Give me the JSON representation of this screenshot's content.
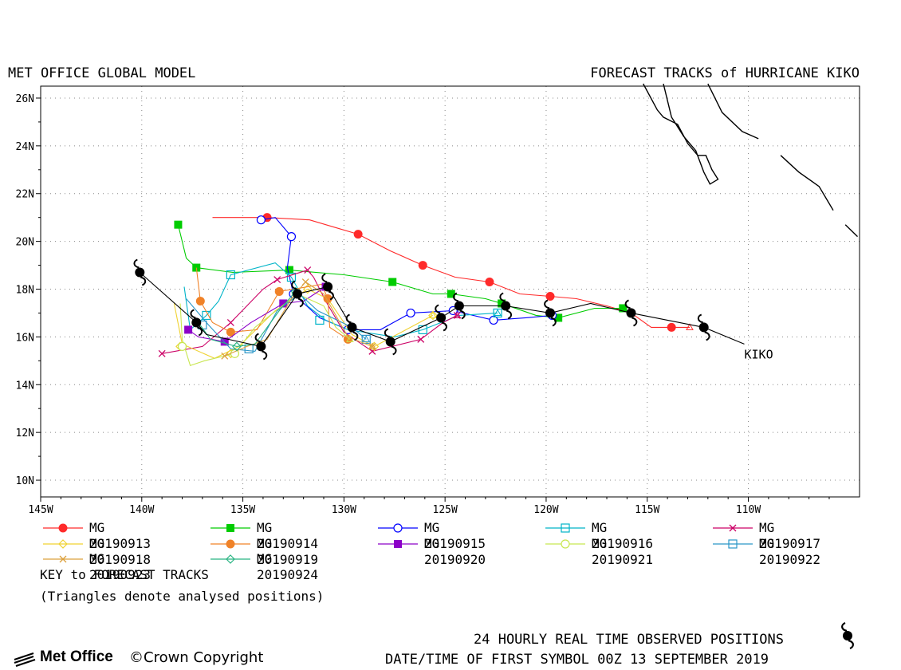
{
  "header": {
    "left_title": "MET OFFICE GLOBAL MODEL",
    "right_title": "FORECAST TRACKS of HURRICANE KIKO"
  },
  "map": {
    "lon_range": [
      -145,
      -104.5
    ],
    "lat_range": [
      9.3,
      26.5
    ],
    "lon_ticks": [
      {
        "lon": -145,
        "label": "145W"
      },
      {
        "lon": -140,
        "label": "140W"
      },
      {
        "lon": -135,
        "label": "135W"
      },
      {
        "lon": -130,
        "label": "130W"
      },
      {
        "lon": -125,
        "label": "125W"
      },
      {
        "lon": -120,
        "label": "120W"
      },
      {
        "lon": -115,
        "label": "115W"
      },
      {
        "lon": -110,
        "label": "110W"
      }
    ],
    "lat_ticks": [
      {
        "lat": 10,
        "label": "10N"
      },
      {
        "lat": 12,
        "label": "12N"
      },
      {
        "lat": 14,
        "label": "14N"
      },
      {
        "lat": 16,
        "label": "16N"
      },
      {
        "lat": 18,
        "label": "18N"
      },
      {
        "lat": 20,
        "label": "20N"
      },
      {
        "lat": 22,
        "label": "22N"
      },
      {
        "lat": 24,
        "label": "24N"
      },
      {
        "lat": 26,
        "label": "26N"
      }
    ],
    "grid": true,
    "storm_label": "KIKO",
    "storm_label_pos": [
      -110.2,
      15.1
    ],
    "observed_track": [
      [
        -110.2,
        15.7
      ],
      [
        -112.2,
        16.4
      ],
      [
        -115.8,
        17.0
      ],
      [
        -117.8,
        17.4
      ],
      [
        -119.8,
        17.0
      ],
      [
        -122.0,
        17.3
      ],
      [
        -124.3,
        17.3
      ],
      [
        -125.2,
        16.8
      ],
      [
        -127.7,
        15.8
      ],
      [
        -129.6,
        16.4
      ],
      [
        -130.8,
        18.1
      ],
      [
        -132.3,
        17.8
      ],
      [
        -134.1,
        15.6
      ],
      [
        -136.8,
        16.1
      ],
      [
        -137.3,
        16.6
      ],
      [
        -140.1,
        18.7
      ]
    ],
    "observed_points": [
      [
        -112.2,
        16.4
      ],
      [
        -115.8,
        17.0
      ],
      [
        -119.8,
        17.0
      ],
      [
        -122.0,
        17.3
      ],
      [
        -124.3,
        17.3
      ],
      [
        -125.2,
        16.8
      ],
      [
        -127.7,
        15.8
      ],
      [
        -129.6,
        16.4
      ],
      [
        -130.8,
        18.1
      ],
      [
        -132.3,
        17.8
      ],
      [
        -134.1,
        15.6
      ],
      [
        -137.3,
        16.6
      ],
      [
        -140.1,
        18.7
      ]
    ],
    "coastlines": [
      [
        [
          -115.2,
          26.6
        ],
        [
          -114.5,
          25.5
        ],
        [
          -114.2,
          25.2
        ],
        [
          -113.5,
          24.9
        ],
        [
          -113.0,
          24.1
        ],
        [
          -112.5,
          23.6
        ],
        [
          -112.1,
          23.6
        ],
        [
          -111.8,
          23.0
        ],
        [
          -111.5,
          22.6
        ],
        [
          -111.9,
          22.4
        ],
        [
          -112.2,
          22.9
        ],
        [
          -112.6,
          23.8
        ],
        [
          -113.2,
          24.4
        ],
        [
          -113.8,
          25.2
        ],
        [
          -114.2,
          26.6
        ]
      ],
      [
        [
          -112.0,
          26.6
        ],
        [
          -111.3,
          25.4
        ],
        [
          -110.3,
          24.6
        ],
        [
          -109.5,
          24.3
        ]
      ],
      [
        [
          -108.4,
          23.6
        ],
        [
          -107.5,
          22.9
        ],
        [
          -106.5,
          22.3
        ],
        [
          -105.8,
          21.3
        ]
      ],
      [
        [
          -105.2,
          20.7
        ],
        [
          -104.6,
          20.2
        ]
      ]
    ]
  },
  "forecast_tracks": [
    {
      "name": "MG 20190913",
      "color": "#ff2a2a",
      "marker": "circle-filled",
      "points": [
        [
          -112.9,
          16.4
        ],
        [
          -113.8,
          16.4
        ],
        [
          -114.8,
          16.4
        ],
        [
          -115.8,
          17.0
        ],
        [
          -117.0,
          17.3
        ],
        [
          -118.5,
          17.6
        ],
        [
          -119.8,
          17.7
        ],
        [
          -121.3,
          17.8
        ],
        [
          -122.8,
          18.3
        ],
        [
          -124.5,
          18.5
        ],
        [
          -126.1,
          19.0
        ],
        [
          -127.7,
          19.6
        ],
        [
          -129.3,
          20.3
        ],
        [
          -130.5,
          20.6
        ],
        [
          -131.7,
          20.9
        ],
        [
          -133.8,
          21.0
        ],
        [
          -136.5,
          21.0
        ]
      ],
      "markers": [
        [
          -113.8,
          16.4
        ],
        [
          -115.8,
          17.0
        ],
        [
          -119.8,
          17.7
        ],
        [
          -122.8,
          18.3
        ],
        [
          -126.1,
          19.0
        ],
        [
          -129.3,
          20.3
        ],
        [
          -133.8,
          21.0
        ]
      ]
    },
    {
      "name": "MG 20190914",
      "color": "#00cc00",
      "marker": "square-filled",
      "points": [
        [
          -116.2,
          17.2
        ],
        [
          -117.6,
          17.2
        ],
        [
          -119.4,
          16.8
        ],
        [
          -120.5,
          16.9
        ],
        [
          -122.2,
          17.4
        ],
        [
          -123.0,
          17.6
        ],
        [
          -124.7,
          17.8
        ],
        [
          -125.6,
          17.8
        ],
        [
          -127.6,
          18.3
        ],
        [
          -130.0,
          18.6
        ],
        [
          -132.7,
          18.8
        ],
        [
          -135.5,
          18.7
        ],
        [
          -137.3,
          18.9
        ],
        [
          -137.8,
          19.3
        ],
        [
          -138.0,
          20.0
        ],
        [
          -138.2,
          20.7
        ]
      ],
      "markers": [
        [
          -116.2,
          17.2
        ],
        [
          -119.4,
          16.8
        ],
        [
          -122.2,
          17.4
        ],
        [
          -124.7,
          17.8
        ],
        [
          -127.6,
          18.3
        ],
        [
          -132.7,
          18.8
        ],
        [
          -137.3,
          18.9
        ],
        [
          -138.2,
          20.7
        ]
      ]
    },
    {
      "name": "MG 20190915",
      "color": "#0000ff",
      "marker": "circle-open",
      "points": [
        [
          -119.7,
          16.9
        ],
        [
          -121.0,
          16.8
        ],
        [
          -122.6,
          16.7
        ],
        [
          -124.6,
          17.1
        ],
        [
          -126.7,
          17.0
        ],
        [
          -128.2,
          16.3
        ],
        [
          -129.8,
          16.3
        ],
        [
          -131.2,
          16.8
        ],
        [
          -132.5,
          17.8
        ],
        [
          -132.8,
          18.9
        ],
        [
          -132.6,
          20.2
        ],
        [
          -133.4,
          21.0
        ],
        [
          -134.1,
          20.9
        ]
      ],
      "markers": [
        [
          -119.7,
          16.9
        ],
        [
          -122.6,
          16.7
        ],
        [
          -124.6,
          17.1
        ],
        [
          -126.7,
          17.0
        ],
        [
          -129.8,
          16.3
        ],
        [
          -132.5,
          17.8
        ],
        [
          -132.6,
          20.2
        ],
        [
          -134.1,
          20.9
        ]
      ]
    },
    {
      "name": "MG 20190916",
      "color": "#00b4c8",
      "marker": "square-open",
      "points": [
        [
          -122.4,
          17.0
        ],
        [
          -124.3,
          16.9
        ],
        [
          -126.1,
          16.3
        ],
        [
          -127.5,
          16.0
        ],
        [
          -129.8,
          16.3
        ],
        [
          -130.9,
          16.7
        ],
        [
          -131.8,
          17.3
        ],
        [
          -132.6,
          18.5
        ],
        [
          -133.4,
          19.1
        ],
        [
          -135.6,
          18.6
        ],
        [
          -136.2,
          17.5
        ],
        [
          -136.8,
          16.9
        ],
        [
          -137.2,
          16.6
        ],
        [
          -137.6,
          16.3
        ],
        [
          -137.9,
          18.1
        ]
      ],
      "markers": [
        [
          -122.4,
          17.0
        ],
        [
          -126.1,
          16.3
        ],
        [
          -131.2,
          16.7
        ],
        [
          -132.6,
          18.5
        ],
        [
          -135.6,
          18.6
        ],
        [
          -136.8,
          16.9
        ]
      ]
    },
    {
      "name": "MG 20190917",
      "color": "#cc0066",
      "marker": "x",
      "points": [
        [
          -124.4,
          16.9
        ],
        [
          -125.1,
          16.6
        ],
        [
          -126.2,
          15.9
        ],
        [
          -128.6,
          15.4
        ],
        [
          -130.0,
          16.2
        ],
        [
          -130.9,
          17.5
        ],
        [
          -131.5,
          18.5
        ],
        [
          -131.8,
          18.8
        ],
        [
          -133.3,
          18.4
        ],
        [
          -134.0,
          18.0
        ],
        [
          -135.6,
          16.6
        ],
        [
          -137.0,
          15.6
        ],
        [
          -139.0,
          15.3
        ]
      ],
      "markers": [
        [
          -124.4,
          16.9
        ],
        [
          -126.2,
          15.9
        ],
        [
          -128.6,
          15.4
        ],
        [
          -131.8,
          18.8
        ],
        [
          -133.3,
          18.4
        ],
        [
          -135.6,
          16.6
        ],
        [
          -139.0,
          15.3
        ]
      ]
    },
    {
      "name": "MG 20190918",
      "color": "#f0d232",
      "marker": "diamond-open",
      "points": [
        [
          -125.6,
          16.9
        ],
        [
          -127.6,
          16.0
        ],
        [
          -128.5,
          15.6
        ],
        [
          -129.6,
          16.1
        ],
        [
          -130.8,
          17.6
        ],
        [
          -131.8,
          18.0
        ],
        [
          -133.4,
          17.1
        ],
        [
          -135.2,
          15.6
        ],
        [
          -136.4,
          15.1
        ],
        [
          -138.0,
          15.7
        ],
        [
          -138.4,
          17.4
        ]
      ],
      "markers": [
        [
          -125.6,
          16.9
        ],
        [
          -128.5,
          15.6
        ],
        [
          -131.8,
          18.0
        ],
        [
          -135.6,
          15.3
        ],
        [
          -138.1,
          15.6
        ]
      ]
    },
    {
      "name": "MG 20190919",
      "color": "#f08228",
      "marker": "circle-filled",
      "points": [
        [
          -129.8,
          15.9
        ],
        [
          -130.7,
          16.4
        ],
        [
          -130.8,
          17.6
        ],
        [
          -131.1,
          18.2
        ],
        [
          -133.2,
          17.9
        ],
        [
          -134.3,
          16.3
        ],
        [
          -135.6,
          16.2
        ],
        [
          -136.5,
          16.6
        ],
        [
          -137.1,
          17.5
        ],
        [
          -137.3,
          18.9
        ]
      ],
      "markers": [
        [
          -129.8,
          15.9
        ],
        [
          -130.8,
          17.6
        ],
        [
          -133.2,
          17.9
        ],
        [
          -135.6,
          16.2
        ],
        [
          -137.1,
          17.5
        ]
      ]
    },
    {
      "name": "MG 20190920",
      "color": "#8c00c8",
      "marker": "square-filled",
      "points": [
        [
          -130.9,
          18.1
        ],
        [
          -132.0,
          17.5
        ],
        [
          -133.0,
          17.4
        ],
        [
          -134.6,
          16.6
        ],
        [
          -135.9,
          15.8
        ],
        [
          -137.2,
          16.0
        ],
        [
          -137.7,
          16.3
        ]
      ],
      "markers": [
        [
          -130.9,
          18.1
        ],
        [
          -133.0,
          17.4
        ],
        [
          -135.9,
          15.8
        ],
        [
          -137.7,
          16.3
        ]
      ]
    },
    {
      "name": "MG 20190921",
      "color": "#c8e650",
      "marker": "circle-open",
      "points": [
        [
          -129.7,
          15.9
        ],
        [
          -130.4,
          16.4
        ],
        [
          -131.0,
          17.3
        ],
        [
          -132.3,
          17.8
        ],
        [
          -134.4,
          16.4
        ],
        [
          -135.4,
          15.3
        ],
        [
          -136.9,
          15.0
        ],
        [
          -137.6,
          14.8
        ],
        [
          -138.0,
          15.9
        ],
        [
          -138.1,
          17.4
        ]
      ],
      "markers": [
        [
          -135.4,
          15.3
        ],
        [
          -138.0,
          15.6
        ]
      ]
    },
    {
      "name": "MG 20190922",
      "color": "#2a96c8",
      "marker": "square-open",
      "points": [
        [
          -128.9,
          15.9
        ],
        [
          -129.6,
          16.4
        ],
        [
          -131.3,
          17.1
        ],
        [
          -132.2,
          17.8
        ],
        [
          -133.3,
          17.1
        ],
        [
          -134.4,
          15.4
        ],
        [
          -135.6,
          15.5
        ],
        [
          -136.7,
          16.5
        ],
        [
          -137.8,
          17.6
        ]
      ],
      "markers": [
        [
          -128.9,
          15.9
        ],
        [
          -134.7,
          15.5
        ],
        [
          -137.0,
          16.5
        ]
      ]
    },
    {
      "name": "MG 20190923",
      "color": "#dca03c",
      "marker": "x",
      "points": [
        [
          -128.6,
          15.6
        ],
        [
          -129.8,
          16.0
        ],
        [
          -131.0,
          17.8
        ],
        [
          -131.9,
          18.3
        ],
        [
          -132.6,
          17.6
        ],
        [
          -133.8,
          15.9
        ],
        [
          -134.8,
          15.6
        ],
        [
          -135.9,
          15.2
        ]
      ],
      "markers": [
        [
          -128.6,
          15.6
        ],
        [
          -131.9,
          18.3
        ],
        [
          -135.9,
          15.2
        ]
      ]
    },
    {
      "name": "MG 20190924",
      "color": "#28b482",
      "marker": "diamond-open",
      "points": [
        [
          -132.4,
          17.9
        ],
        [
          -133.2,
          17.1
        ],
        [
          -134.4,
          15.7
        ],
        [
          -135.3,
          15.6
        ],
        [
          -136.6,
          15.9
        ],
        [
          -137.2,
          16.6
        ]
      ],
      "markers": [
        [
          -132.4,
          17.9
        ],
        [
          -135.3,
          15.6
        ]
      ]
    }
  ],
  "legend": {
    "key_title": "KEY to FORECAST TRACKS",
    "note": "(Triangles denote analysed positions)"
  },
  "footer": {
    "logo_text": "Met Office",
    "copyright": "©Crown Copyright",
    "observed_note": "24 HOURLY REAL TIME OBSERVED POSITIONS",
    "first_symbol": "DATE/TIME OF FIRST SYMBOL 00Z 13 SEPTEMBER 2019"
  }
}
